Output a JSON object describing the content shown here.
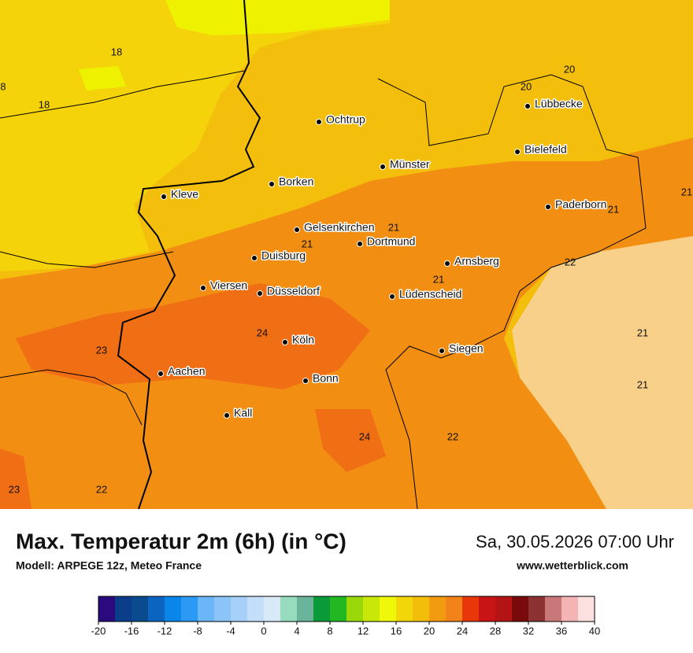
{
  "map": {
    "cities": [
      "Ochtrup",
      "Lübbecke",
      "Bielefeld",
      "Münster",
      "Borken",
      "Kleve",
      "Paderborn",
      "Gelsenkirchen",
      "Dortmund",
      "Duisburg",
      "Arnsberg",
      "Viersen",
      "Düsseldorf",
      "Lüdenscheid",
      "Köln",
      "Siegen",
      "Aachen",
      "Bonn",
      "Kall"
    ],
    "contour_labels": [
      18,
      8,
      18,
      20,
      20,
      21,
      21,
      21,
      21,
      22,
      21,
      24,
      23,
      21,
      21,
      24,
      22,
      23,
      22
    ]
  },
  "footer": {
    "title": "Max. Temperatur 2m (6h) (in °C)",
    "model": "Modell: ARPEGE 12z, Meteo France",
    "date": "Sa, 30.05.2026 07:00 Uhr",
    "url": "www.wetterblick.com"
  },
  "colorbar": {
    "ticks": [
      -20,
      -16,
      -12,
      -8,
      -4,
      0,
      4,
      8,
      12,
      16,
      20,
      24,
      28,
      32,
      36,
      40
    ],
    "colors": [
      "#2a0a7c",
      "#0c3d8a",
      "#0a4a8e",
      "#0a64c0",
      "#0a86ea",
      "#2a9af5",
      "#6ab6f8",
      "#8ac4f8",
      "#a6d0f8",
      "#c2def8",
      "#d8eaf8",
      "#98dcc0",
      "#6ab49a",
      "#0a9a3a",
      "#22b822",
      "#9ad80a",
      "#c8e80a",
      "#f0f80a",
      "#f3d60a",
      "#f3be0a",
      "#f29a10",
      "#f2821a",
      "#e8380a",
      "#c81414",
      "#b41414",
      "#780a0a",
      "#8c3232",
      "#c87878",
      "#f4b4b4",
      "#fde0e0"
    ]
  }
}
